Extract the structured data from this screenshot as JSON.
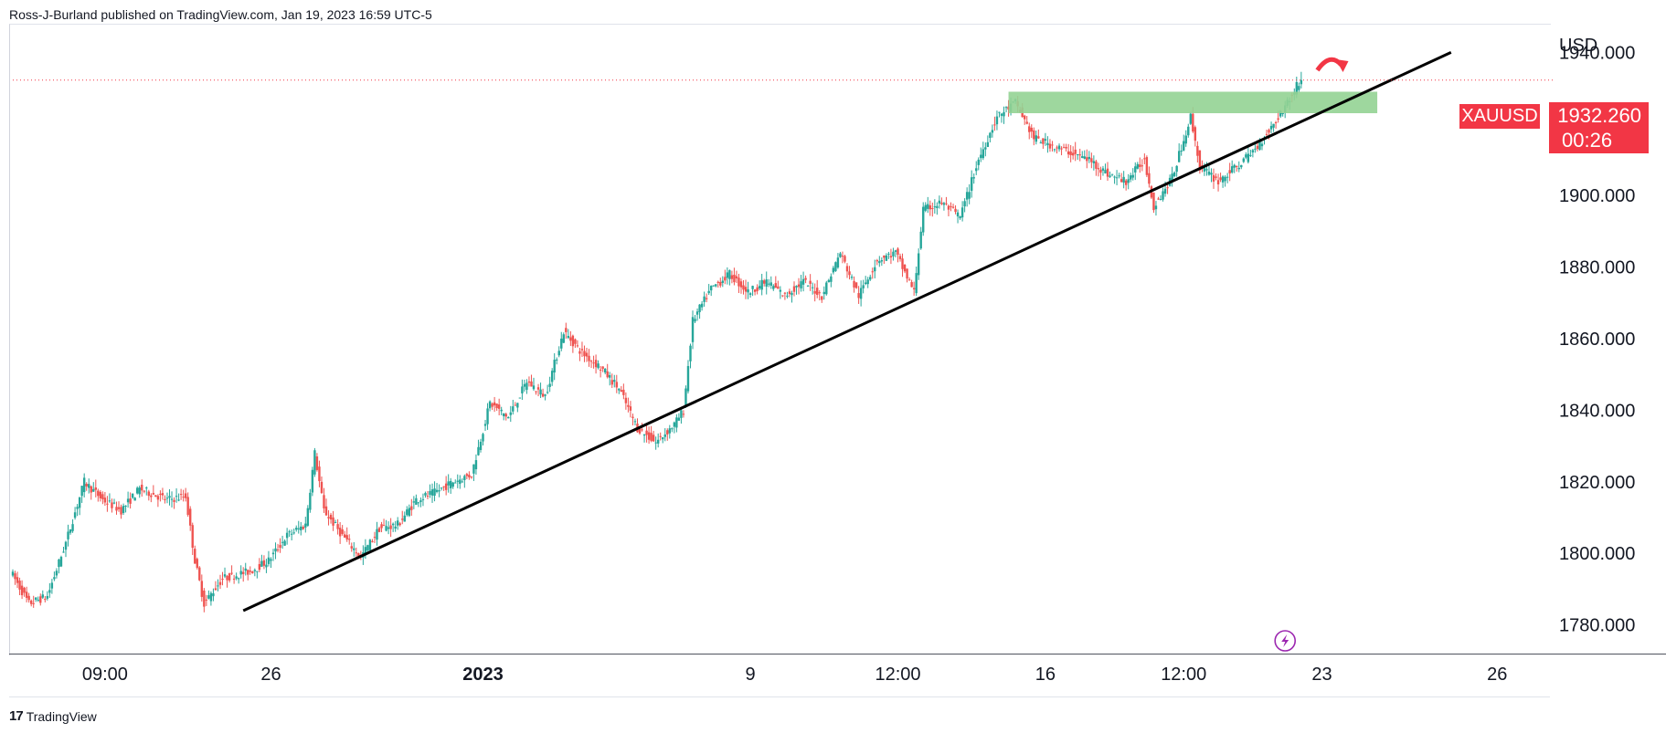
{
  "header": {
    "text": "Ross-J-Burland published on TradingView.com, Jan 19, 2023 16:59 UTC-5"
  },
  "footer": {
    "logo": "17",
    "brand": "TradingView"
  },
  "price_tag": {
    "symbol": "XAUUSD",
    "price": "1932.260",
    "countdown": "00:26"
  },
  "colors": {
    "up": "#26a69a",
    "down": "#ef5350",
    "accent": "#f23645",
    "zone": "#93d393",
    "trend": "#000000",
    "flash": "#9c27b0"
  },
  "icons": {
    "arrow": "curved-arrow-icon",
    "flash": "lightning-icon",
    "logo": "tradingview-logo-icon"
  },
  "chart_data": {
    "type": "candlestick",
    "title": "",
    "currency": "USD",
    "symbol": "XAUUSD",
    "ylim": [
      1772,
      1948
    ],
    "y_ticks": [
      "1940.000",
      "1920.000",
      "1900.000",
      "1880.000",
      "1860.000",
      "1840.000",
      "1820.000",
      "1800.000",
      "1780.000"
    ],
    "x_ticks": [
      {
        "label": "09:00",
        "bold": false
      },
      {
        "label": "26",
        "bold": false
      },
      {
        "label": "2023",
        "bold": true
      },
      {
        "label": "9",
        "bold": false
      },
      {
        "label": "12:00",
        "bold": false
      },
      {
        "label": "16",
        "bold": false
      },
      {
        "label": "12:00",
        "bold": false
      },
      {
        "label": "23",
        "bold": false
      },
      {
        "label": "26",
        "bold": false
      }
    ],
    "x_tick_index": [
      10,
      28,
      51,
      80,
      96,
      112,
      127,
      142,
      161
    ],
    "x_range": [
      0,
      181
    ],
    "last_price": 1932.26,
    "path": [
      [
        0,
        1795
      ],
      [
        2,
        1786
      ],
      [
        4,
        1788
      ],
      [
        6,
        1803
      ],
      [
        8,
        1820
      ],
      [
        10,
        1815
      ],
      [
        12,
        1812
      ],
      [
        14,
        1818
      ],
      [
        17,
        1815
      ],
      [
        19,
        1816
      ],
      [
        20,
        1798
      ],
      [
        21,
        1786
      ],
      [
        23,
        1793
      ],
      [
        26,
        1795
      ],
      [
        28,
        1798
      ],
      [
        30,
        1805
      ],
      [
        32,
        1808
      ],
      [
        33,
        1828
      ],
      [
        34,
        1812
      ],
      [
        36,
        1805
      ],
      [
        38,
        1799
      ],
      [
        40,
        1807
      ],
      [
        42,
        1808
      ],
      [
        44,
        1815
      ],
      [
        46,
        1817
      ],
      [
        48,
        1820
      ],
      [
        50,
        1822
      ],
      [
        52,
        1842
      ],
      [
        54,
        1838
      ],
      [
        56,
        1848
      ],
      [
        58,
        1844
      ],
      [
        60,
        1862
      ],
      [
        62,
        1856
      ],
      [
        64,
        1852
      ],
      [
        66,
        1846
      ],
      [
        68,
        1835
      ],
      [
        70,
        1831
      ],
      [
        72,
        1836
      ],
      [
        73,
        1840
      ],
      [
        74,
        1865
      ],
      [
        76,
        1874
      ],
      [
        78,
        1878
      ],
      [
        80,
        1873
      ],
      [
        82,
        1876
      ],
      [
        84,
        1872
      ],
      [
        86,
        1876
      ],
      [
        88,
        1872
      ],
      [
        90,
        1884
      ],
      [
        92,
        1872
      ],
      [
        94,
        1882
      ],
      [
        96,
        1884
      ],
      [
        98,
        1873
      ],
      [
        99,
        1896
      ],
      [
        101,
        1898
      ],
      [
        103,
        1894
      ],
      [
        105,
        1910
      ],
      [
        107,
        1922
      ],
      [
        109,
        1926
      ],
      [
        111,
        1916
      ],
      [
        113,
        1914
      ],
      [
        115,
        1912
      ],
      [
        117,
        1910
      ],
      [
        119,
        1906
      ],
      [
        121,
        1904
      ],
      [
        123,
        1910
      ],
      [
        124,
        1897
      ],
      [
        126,
        1905
      ],
      [
        128,
        1922
      ],
      [
        129,
        1908
      ],
      [
        131,
        1904
      ],
      [
        133,
        1908
      ],
      [
        135,
        1913
      ],
      [
        137,
        1920
      ],
      [
        139,
        1928
      ],
      [
        140,
        1933
      ]
    ],
    "trendline": {
      "x": [
        25,
        156
      ],
      "y": [
        1784,
        1940
      ]
    },
    "resistance_zone": {
      "x": [
        108,
        148
      ],
      "y": [
        1923,
        1929
      ]
    }
  }
}
